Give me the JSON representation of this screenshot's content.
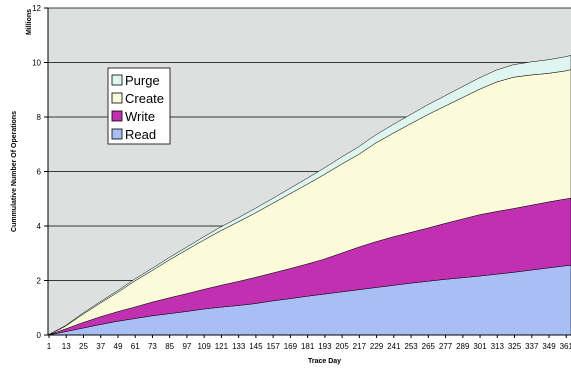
{
  "chart_data": {
    "type": "area",
    "stacked": true,
    "xlabel": "Trace Day",
    "ylabel": "Cummulative Number Of Operations",
    "unit_label": "Millions",
    "ylim": [
      0,
      12
    ],
    "xlim": [
      1,
      365
    ],
    "grid": "horizontal",
    "legend_placement": "upper-left inside plot",
    "x_ticks": [
      "1",
      "13",
      "25",
      "37",
      "49",
      "61",
      "73",
      "85",
      "97",
      "109",
      "121",
      "133",
      "145",
      "157",
      "169",
      "181",
      "193",
      "205",
      "217",
      "229",
      "241",
      "253",
      "265",
      "277",
      "289",
      "301",
      "313",
      "325",
      "337",
      "349",
      "361"
    ],
    "y_ticks": [
      "0",
      "2",
      "4",
      "6",
      "8",
      "10",
      "12"
    ],
    "x": [
      1,
      13,
      25,
      37,
      49,
      61,
      73,
      85,
      97,
      109,
      121,
      133,
      145,
      157,
      169,
      181,
      193,
      205,
      217,
      229,
      241,
      253,
      265,
      277,
      289,
      301,
      313,
      325,
      337,
      349,
      361,
      365
    ],
    "series": [
      {
        "name": "Read",
        "color": "#a8bef4",
        "values": [
          0,
          0.12,
          0.25,
          0.38,
          0.5,
          0.6,
          0.7,
          0.78,
          0.86,
          0.95,
          1.02,
          1.08,
          1.15,
          1.25,
          1.33,
          1.42,
          1.5,
          1.58,
          1.66,
          1.74,
          1.82,
          1.9,
          1.97,
          2.04,
          2.1,
          2.16,
          2.23,
          2.3,
          2.38,
          2.46,
          2.54,
          2.56
        ]
      },
      {
        "name": "Write",
        "color": "#c030b0",
        "values": [
          0,
          0.1,
          0.2,
          0.28,
          0.35,
          0.42,
          0.5,
          0.58,
          0.65,
          0.72,
          0.8,
          0.88,
          0.96,
          1.02,
          1.1,
          1.18,
          1.28,
          1.42,
          1.56,
          1.68,
          1.78,
          1.86,
          1.95,
          2.05,
          2.15,
          2.25,
          2.3,
          2.34,
          2.38,
          2.42,
          2.45,
          2.46
        ]
      },
      {
        "name": "Create",
        "color": "#fbfbda",
        "values": [
          0,
          0.1,
          0.3,
          0.5,
          0.7,
          0.95,
          1.15,
          1.38,
          1.6,
          1.8,
          2.0,
          2.18,
          2.36,
          2.55,
          2.74,
          2.92,
          3.1,
          3.26,
          3.4,
          3.62,
          3.8,
          3.98,
          4.16,
          4.3,
          4.45,
          4.6,
          4.75,
          4.82,
          4.78,
          4.72,
          4.7,
          4.72
        ]
      },
      {
        "name": "Purge",
        "color": "#dff5f0",
        "values": [
          0,
          0.02,
          0.04,
          0.05,
          0.06,
          0.07,
          0.08,
          0.09,
          0.1,
          0.12,
          0.14,
          0.15,
          0.17,
          0.18,
          0.2,
          0.22,
          0.24,
          0.26,
          0.28,
          0.3,
          0.32,
          0.34,
          0.36,
          0.38,
          0.4,
          0.42,
          0.44,
          0.46,
          0.48,
          0.5,
          0.52,
          0.52
        ]
      }
    ],
    "legend_order": [
      "Purge",
      "Create",
      "Write",
      "Read"
    ],
    "plot_background": "#dde0de"
  }
}
